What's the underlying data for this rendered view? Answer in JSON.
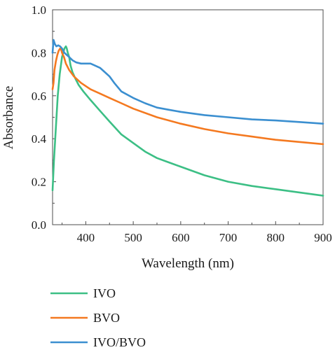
{
  "chart_data": {
    "type": "line",
    "xlabel": "Wavelength (nm)",
    "ylabel": "Absorbance",
    "xlim": [
      330,
      900
    ],
    "ylim": [
      0.0,
      1.0
    ],
    "xticks": [
      400,
      500,
      600,
      700,
      800,
      900
    ],
    "yticks": [
      0.0,
      0.2,
      0.4,
      0.6,
      0.8,
      1.0
    ],
    "ytick_labels": [
      "0.0",
      "0.2",
      "0.4",
      "0.6",
      "0.8",
      "1.0"
    ],
    "grid": false,
    "legend_position": "bottom-left",
    "series": [
      {
        "name": "IVO",
        "color": "#3cbf85",
        "x": [
          330,
          333,
          337,
          341,
          345,
          350,
          355,
          358,
          360,
          362,
          365,
          368,
          372,
          378,
          385,
          395,
          410,
          430,
          450,
          475,
          500,
          525,
          550,
          575,
          600,
          650,
          700,
          750,
          800,
          850,
          900
        ],
        "y": [
          0.16,
          0.3,
          0.45,
          0.6,
          0.7,
          0.78,
          0.82,
          0.83,
          0.82,
          0.8,
          0.78,
          0.74,
          0.71,
          0.68,
          0.65,
          0.62,
          0.58,
          0.53,
          0.48,
          0.42,
          0.38,
          0.34,
          0.31,
          0.29,
          0.27,
          0.23,
          0.2,
          0.18,
          0.165,
          0.15,
          0.135
        ]
      },
      {
        "name": "BVO",
        "color": "#f47920",
        "x": [
          330,
          332,
          334,
          337,
          340,
          343,
          346,
          348,
          350,
          354,
          358,
          365,
          375,
          390,
          410,
          430,
          450,
          475,
          500,
          550,
          600,
          650,
          700,
          750,
          800,
          850,
          900
        ],
        "y": [
          0.63,
          0.66,
          0.72,
          0.76,
          0.79,
          0.81,
          0.82,
          0.815,
          0.8,
          0.78,
          0.75,
          0.72,
          0.69,
          0.66,
          0.63,
          0.61,
          0.59,
          0.565,
          0.54,
          0.5,
          0.47,
          0.445,
          0.425,
          0.41,
          0.395,
          0.385,
          0.375
        ]
      },
      {
        "name": "IVO/BVO",
        "color": "#3b8fd0",
        "x": [
          330,
          332,
          335,
          338,
          342,
          346,
          350,
          355,
          360,
          365,
          372,
          380,
          390,
          400,
          410,
          420,
          430,
          440,
          450,
          460,
          475,
          500,
          525,
          550,
          575,
          600,
          650,
          700,
          750,
          800,
          850,
          900
        ],
        "y": [
          0.8,
          0.86,
          0.84,
          0.83,
          0.835,
          0.83,
          0.82,
          0.8,
          0.79,
          0.78,
          0.765,
          0.755,
          0.75,
          0.75,
          0.75,
          0.74,
          0.73,
          0.71,
          0.69,
          0.66,
          0.62,
          0.59,
          0.565,
          0.545,
          0.535,
          0.525,
          0.51,
          0.5,
          0.49,
          0.485,
          0.478,
          0.47
        ]
      }
    ]
  }
}
